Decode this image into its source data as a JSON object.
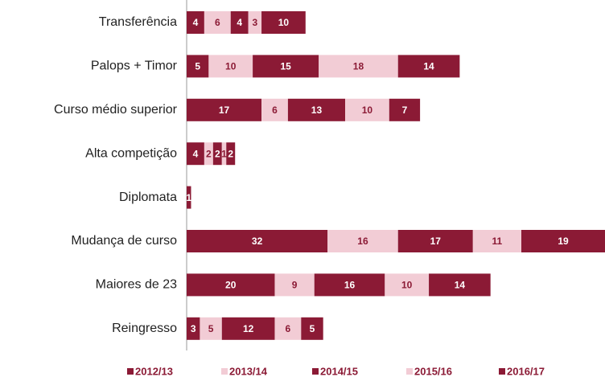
{
  "chart_data": {
    "type": "bar",
    "orientation": "horizontal",
    "stacked": true,
    "categories": [
      "Transferência",
      "Palops + Timor",
      "Curso médio superior",
      "Alta competição",
      "Diplomata",
      "Mudança de curso",
      "Maiores de 23",
      "Reingresso"
    ],
    "series": [
      {
        "name": "2012/13",
        "color": "#8b1a35",
        "values": [
          4,
          5,
          17,
          4,
          1,
          32,
          20,
          3
        ]
      },
      {
        "name": "2013/14",
        "color": "#f2ccd5",
        "values": [
          6,
          10,
          6,
          2,
          null,
          16,
          9,
          5
        ]
      },
      {
        "name": "2014/15",
        "color": "#8b1a35",
        "values": [
          4,
          15,
          13,
          2,
          null,
          17,
          16,
          12
        ]
      },
      {
        "name": "2015/16",
        "color": "#f2ccd5",
        "values": [
          3,
          18,
          10,
          1,
          null,
          11,
          10,
          6
        ]
      },
      {
        "name": "2016/17",
        "color": "#8b1a35",
        "values": [
          10,
          14,
          7,
          2,
          null,
          19,
          14,
          5
        ]
      }
    ],
    "xlim": [
      0,
      95
    ],
    "legend": "bottom"
  }
}
